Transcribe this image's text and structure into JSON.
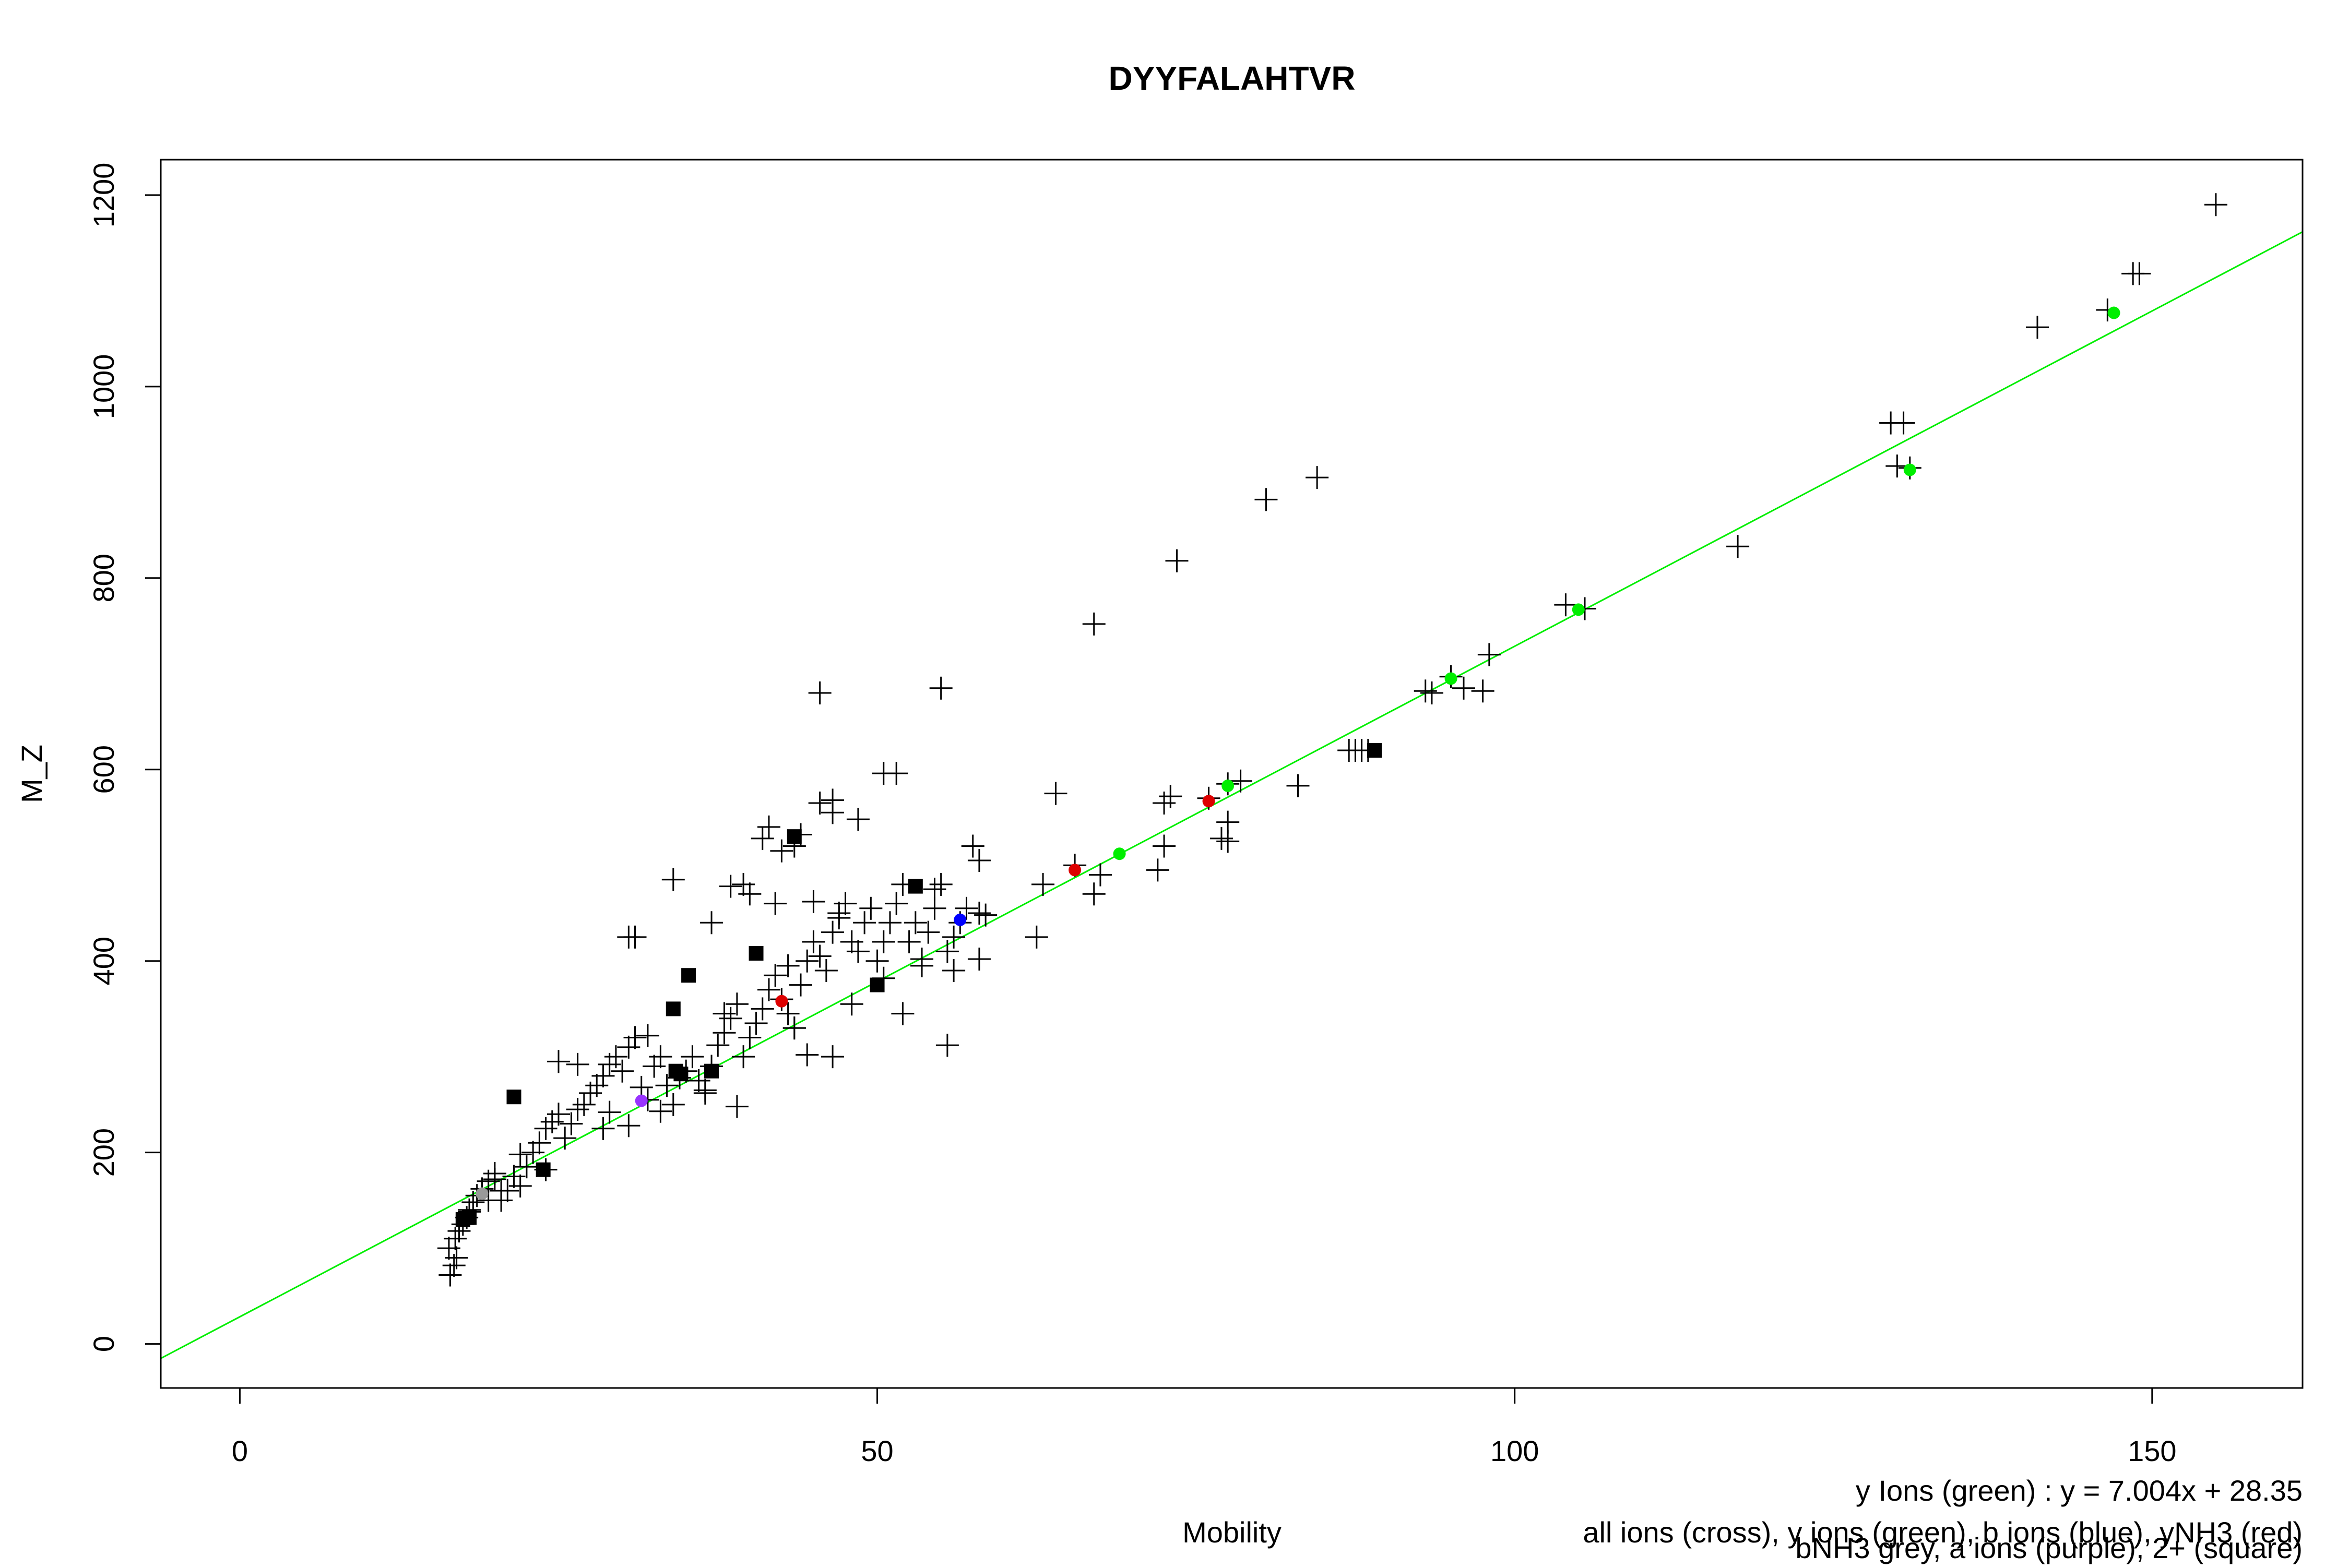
{
  "chart_data": {
    "type": "scatter",
    "title": "DYYFALAHTVR",
    "xlabel": "Mobility",
    "ylabel": "M_Z",
    "xlim": [
      -6.2,
      161.8
    ],
    "ylim": [
      -46,
      1237
    ],
    "x_ticks": [
      0,
      50,
      100,
      150
    ],
    "y_ticks": [
      0,
      200,
      400,
      600,
      800,
      1000,
      1200
    ],
    "x_tick_labels": [
      "0",
      "50",
      "100",
      "150"
    ],
    "y_tick_labels": [
      "0",
      "200",
      "400",
      "600",
      "800",
      "1000",
      "1200"
    ],
    "grid": false,
    "fit_line": {
      "slope": 7.004,
      "intercept": 28.35,
      "color": "#00ee00"
    },
    "annotations": [
      "y Ions (green) : y = 7.004x + 28.35",
      "all ions (cross), y ions (green), b ions (blue), yNH3 (red)",
      "bNH3 grey, a ions (purple), 2+ (square)"
    ],
    "colors": {
      "y_ions": "#00ee00",
      "b_ions": "#0000ff",
      "yNH3": "#dd0000",
      "bNH3": "#999999",
      "a_ions": "#9933ff",
      "charge2": "#000000",
      "all_ions": "#000000"
    },
    "series": [
      {
        "marker": "cross",
        "color": "#000000",
        "points": [
          [
            16.5,
            72
          ],
          [
            16.8,
            82
          ],
          [
            17.0,
            90
          ],
          [
            16.4,
            100
          ],
          [
            16.9,
            110
          ],
          [
            17.2,
            118
          ],
          [
            17.5,
            125
          ],
          [
            17.8,
            132
          ],
          [
            18.0,
            140
          ],
          [
            18.3,
            148
          ],
          [
            18.6,
            155
          ],
          [
            19.0,
            162
          ],
          [
            19.5,
            170
          ],
          [
            20.0,
            178
          ],
          [
            20.5,
            150
          ],
          [
            21.0,
            160
          ],
          [
            21.5,
            175
          ],
          [
            22.0,
            165
          ],
          [
            22.5,
            185
          ],
          [
            23.0,
            200
          ],
          [
            23.5,
            210
          ],
          [
            24.0,
            225
          ],
          [
            24.5,
            232
          ],
          [
            25.0,
            240
          ],
          [
            25.5,
            215
          ],
          [
            26.0,
            230
          ],
          [
            26.5,
            245
          ],
          [
            27.0,
            250
          ],
          [
            27.5,
            262
          ],
          [
            28.0,
            270
          ],
          [
            28.5,
            280
          ],
          [
            29.0,
            292
          ],
          [
            29.5,
            300
          ],
          [
            30.0,
            285
          ],
          [
            30.5,
            310
          ],
          [
            31.0,
            320
          ],
          [
            31.5,
            268
          ],
          [
            32.0,
            255
          ],
          [
            32.5,
            290
          ],
          [
            33.0,
            300
          ],
          [
            33.5,
            270
          ],
          [
            34.0,
            250
          ],
          [
            34.5,
            278
          ],
          [
            35.0,
            285
          ],
          [
            35.5,
            300
          ],
          [
            36.0,
            275
          ],
          [
            36.5,
            265
          ],
          [
            37.0,
            290
          ],
          [
            37.5,
            312
          ],
          [
            38.0,
            325
          ],
          [
            38.5,
            340
          ],
          [
            39.0,
            355
          ],
          [
            39.5,
            300
          ],
          [
            40.0,
            320
          ],
          [
            40.5,
            335
          ],
          [
            41.0,
            350
          ],
          [
            41.5,
            370
          ],
          [
            42.0,
            385
          ],
          [
            42.5,
            360
          ],
          [
            43.0,
            345
          ],
          [
            43.5,
            330
          ],
          [
            44.0,
            375
          ],
          [
            44.5,
            400
          ],
          [
            45.0,
            420
          ],
          [
            45.5,
            405
          ],
          [
            46.0,
            390
          ],
          [
            46.5,
            430
          ],
          [
            47.0,
            445
          ],
          [
            47.5,
            460
          ],
          [
            48.0,
            420
          ],
          [
            48.5,
            410
          ],
          [
            49.0,
            440
          ],
          [
            49.5,
            455
          ],
          [
            50.0,
            400
          ],
          [
            50.5,
            420
          ],
          [
            51.0,
            440
          ],
          [
            51.5,
            460
          ],
          [
            52.0,
            480
          ],
          [
            52.5,
            420
          ],
          [
            53.0,
            440
          ],
          [
            53.5,
            395
          ],
          [
            54.0,
            430
          ],
          [
            54.5,
            455
          ],
          [
            55.0,
            480
          ],
          [
            55.5,
            410
          ],
          [
            56.0,
            425
          ],
          [
            56.5,
            440
          ],
          [
            57.0,
            455
          ],
          [
            57.5,
            520
          ],
          [
            58.0,
            505
          ],
          [
            58.5,
            448
          ],
          [
            25.0,
            295
          ],
          [
            26.5,
            292
          ],
          [
            29.0,
            242
          ],
          [
            30.5,
            228
          ],
          [
            32.0,
            322
          ],
          [
            31.0,
            425
          ],
          [
            30.5,
            425
          ],
          [
            34.0,
            485
          ],
          [
            37.0,
            440
          ],
          [
            38.5,
            478
          ],
          [
            39.5,
            480
          ],
          [
            40.0,
            470
          ],
          [
            41.0,
            528
          ],
          [
            41.5,
            540
          ],
          [
            42.5,
            515
          ],
          [
            43.5,
            520
          ],
          [
            44.0,
            532
          ],
          [
            45.0,
            462
          ],
          [
            45.5,
            565
          ],
          [
            46.5,
            568
          ],
          [
            46.5,
            555
          ],
          [
            48.5,
            548
          ],
          [
            47.0,
            450
          ],
          [
            45.5,
            680
          ],
          [
            55.0,
            685
          ],
          [
            50.5,
            596
          ],
          [
            51.5,
            596
          ],
          [
            42.0,
            460
          ],
          [
            43.0,
            395
          ],
          [
            43.5,
            330
          ],
          [
            36.5,
            262
          ],
          [
            39.0,
            248
          ],
          [
            33.0,
            243
          ],
          [
            28.5,
            225
          ],
          [
            22.0,
            198
          ],
          [
            24.0,
            182
          ],
          [
            20.5,
            160
          ],
          [
            20.0,
            172
          ],
          [
            19.5,
            150
          ],
          [
            18.0,
            138
          ],
          [
            38.0,
            345
          ],
          [
            44.5,
            302
          ],
          [
            46.5,
            300
          ],
          [
            48.0,
            355
          ],
          [
            50.5,
            382
          ],
          [
            52.0,
            345
          ],
          [
            53.5,
            402
          ],
          [
            55.5,
            312
          ],
          [
            58.0,
            402
          ],
          [
            56.0,
            390
          ],
          [
            54.5,
            475
          ],
          [
            58.0,
            450
          ],
          [
            62.5,
            425
          ],
          [
            63.0,
            480
          ],
          [
            64.0,
            575
          ],
          [
            65.5,
            500
          ],
          [
            67.0,
            470
          ],
          [
            67.5,
            490
          ],
          [
            72.0,
            495
          ],
          [
            72.5,
            520
          ],
          [
            72.5,
            565
          ],
          [
            73.0,
            572
          ],
          [
            73.5,
            818
          ],
          [
            67.0,
            752
          ],
          [
            77.5,
            585
          ],
          [
            77.5,
            545
          ],
          [
            77.5,
            525
          ],
          [
            77.0,
            528
          ],
          [
            76.0,
            570
          ],
          [
            78.5,
            588
          ],
          [
            80.5,
            882
          ],
          [
            83.0,
            583
          ],
          [
            84.5,
            905
          ],
          [
            87.0,
            620
          ],
          [
            87.5,
            620
          ],
          [
            88.0,
            620
          ],
          [
            88.5,
            620
          ],
          [
            93.0,
            682
          ],
          [
            93.5,
            680
          ],
          [
            95.0,
            697
          ],
          [
            96.0,
            685
          ],
          [
            97.5,
            682
          ],
          [
            98.0,
            720
          ],
          [
            104.0,
            772
          ],
          [
            105.5,
            768
          ],
          [
            117.5,
            833
          ],
          [
            129.5,
            962
          ],
          [
            130.0,
            917
          ],
          [
            130.5,
            962
          ],
          [
            131.0,
            915
          ],
          [
            141.0,
            1062
          ],
          [
            146.5,
            1080
          ],
          [
            148.5,
            1118
          ],
          [
            149.0,
            1118
          ],
          [
            155.0,
            1190
          ]
        ]
      },
      {
        "name": "y ions",
        "marker": "dot",
        "color": "#00ee00",
        "points": [
          [
            69.0,
            512
          ],
          [
            77.5,
            583
          ],
          [
            95.0,
            695
          ],
          [
            105.0,
            767
          ],
          [
            131.0,
            913
          ],
          [
            147.0,
            1077
          ]
        ]
      },
      {
        "name": "b ions",
        "marker": "dot",
        "color": "#0000ff",
        "points": [
          [
            56.5,
            443
          ]
        ]
      },
      {
        "name": "yNH3",
        "marker": "dot",
        "color": "#dd0000",
        "points": [
          [
            42.5,
            358
          ],
          [
            65.5,
            495
          ],
          [
            76.0,
            567
          ]
        ]
      },
      {
        "name": "a ions",
        "marker": "dot",
        "color": "#9933ff",
        "points": [
          [
            31.5,
            254
          ]
        ]
      },
      {
        "name": "bNH3",
        "marker": "dot",
        "color": "#999999",
        "points": [
          [
            19.0,
            157
          ]
        ]
      },
      {
        "name": "2+",
        "marker": "square",
        "color": "#000000",
        "points": [
          [
            17.5,
            130
          ],
          [
            18.0,
            132
          ],
          [
            21.5,
            258
          ],
          [
            23.8,
            182
          ],
          [
            34.0,
            350
          ],
          [
            34.2,
            285
          ],
          [
            34.6,
            282
          ],
          [
            35.2,
            385
          ],
          [
            37.0,
            285
          ],
          [
            40.5,
            408
          ],
          [
            43.5,
            530
          ],
          [
            50.0,
            375
          ],
          [
            53.0,
            478
          ],
          [
            89.0,
            620
          ]
        ]
      }
    ]
  }
}
